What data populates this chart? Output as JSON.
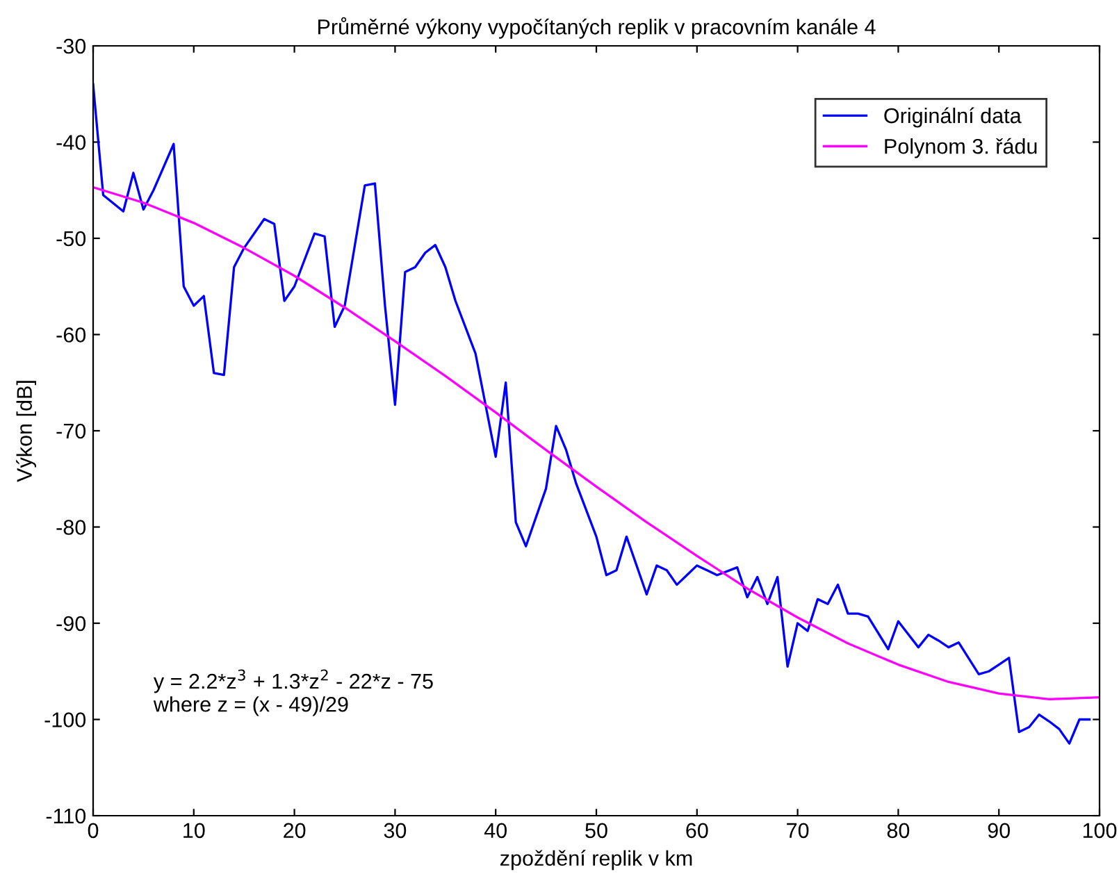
{
  "chart_data": {
    "type": "line",
    "title": "Průměrné výkony vypočítaných replik v pracovním kanále 4",
    "xlabel": "zpoždění replik v km",
    "ylabel": "Výkon [dB]",
    "xlim": [
      0,
      100
    ],
    "xticks": [
      0,
      10,
      20,
      30,
      40,
      50,
      60,
      70,
      80,
      90,
      100
    ],
    "ylim": [
      -110,
      -30
    ],
    "yticks": [
      -110,
      -100,
      -90,
      -80,
      -70,
      -60,
      -50,
      -40,
      -30
    ],
    "grid": false,
    "legend": "top right",
    "marker": "none",
    "line_style": "solid",
    "annotations": [
      {
        "text": "y = 2.2*z$^{3}$ + 1.3*z$^{2}$ - 22*z - 75\nwhere z = (x - 49)/29"
      }
    ],
    "series": [
      {
        "name": "Originální data",
        "color": "#0000ff",
        "x": [
          0,
          1,
          3,
          4,
          5,
          6,
          8,
          9,
          10,
          11,
          12,
          13,
          14,
          15,
          17,
          18,
          19,
          20,
          22,
          23,
          24,
          25,
          27,
          28,
          29,
          30,
          31,
          32,
          33,
          34,
          35,
          36,
          38,
          40,
          41,
          42,
          43,
          45,
          46,
          47,
          48,
          50,
          51,
          52,
          53,
          55,
          56,
          57,
          58,
          59,
          60,
          62,
          64,
          65,
          66,
          67,
          68,
          69,
          70,
          71,
          72,
          73,
          74,
          75,
          76,
          77,
          79,
          80,
          82,
          83,
          84,
          85,
          86,
          88,
          89,
          90,
          91,
          92,
          93,
          94,
          95,
          96,
          97,
          98,
          99
        ],
        "values": [
          -34,
          -45.5,
          -47.2,
          -43.2,
          -47,
          -45,
          -40.2,
          -55,
          -57,
          -56,
          -64,
          -64.2,
          -53,
          -51,
          -48,
          -48.5,
          -56.5,
          -55,
          -49.5,
          -49.8,
          -59.2,
          -57,
          -44.5,
          -44.3,
          -57,
          -67.3,
          -53.5,
          -53,
          -51.5,
          -50.7,
          -53,
          -56.5,
          -62,
          -72.7,
          -65,
          -79.5,
          -82,
          -76,
          -69.5,
          -72,
          -75.5,
          -81,
          -85,
          -84.5,
          -81,
          -87,
          -84,
          -84.5,
          -86,
          -85,
          -84,
          -85,
          -84.2,
          -87.3,
          -85.2,
          -88,
          -85.2,
          -94.5,
          -90,
          -90.8,
          -87.5,
          -88,
          -86,
          -89,
          -89,
          -89.3,
          -92.7,
          -89.8,
          -92.5,
          -91.2,
          -91.8,
          -92.5,
          -92,
          -95.3,
          -95,
          -94.3,
          -93.6,
          -101.3,
          -100.8,
          -99.5,
          -100.2,
          -101,
          -102.5,
          -100,
          -100
        ]
      },
      {
        "name": "Polynom 3. řádu",
        "color": "#ff00ff",
        "x": [
          0,
          5,
          10,
          15,
          20,
          25,
          30,
          35,
          40,
          45,
          50,
          55,
          60,
          65,
          70,
          75,
          80,
          85,
          90,
          95,
          100
        ],
        "values": [
          -44.7,
          -46.3,
          -48.4,
          -51.0,
          -53.9,
          -57.2,
          -60.7,
          -64.3,
          -68.1,
          -72.0,
          -75.8,
          -79.5,
          -83.0,
          -86.4,
          -89.4,
          -92.1,
          -94.3,
          -96.1,
          -97.3,
          -97.9,
          -97.7
        ]
      }
    ]
  }
}
